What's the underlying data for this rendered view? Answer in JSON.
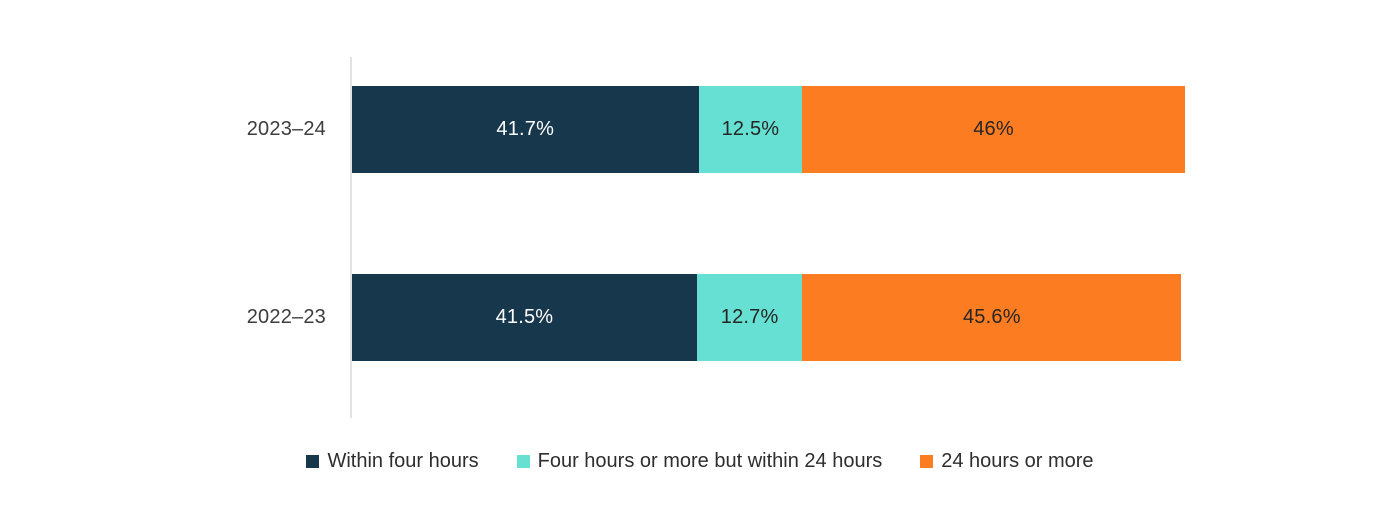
{
  "chart_data": {
    "type": "bar",
    "orientation": "horizontal",
    "stacked": true,
    "title": "",
    "xlabel": "",
    "ylabel": "",
    "xlim": [
      0,
      100
    ],
    "grid": false,
    "legend_position": "bottom",
    "categories": [
      "2023–24",
      "2022–23"
    ],
    "series": [
      {
        "name": "Within four hours",
        "color": "#17374D",
        "label_color": "#ffffff",
        "values": [
          41.7,
          41.5
        ],
        "labels": [
          "41.7%",
          "41.5%"
        ]
      },
      {
        "name": "Four hours or more but within 24 hours",
        "color": "#66E0D2",
        "label_color": "#262626",
        "values": [
          12.5,
          12.7
        ],
        "labels": [
          "12.5%",
          "12.7%"
        ]
      },
      {
        "name": "24 hours or more",
        "color": "#FC7C21",
        "label_color": "#262626",
        "values": [
          46,
          45.6
        ],
        "labels": [
          "46%",
          "45.6%"
        ]
      }
    ]
  },
  "colors": {
    "background": "#ffffff",
    "axis_line": "#e2e2e2",
    "category_label_text": "#3d3d3d",
    "legend_text": "#2e2e2e"
  }
}
